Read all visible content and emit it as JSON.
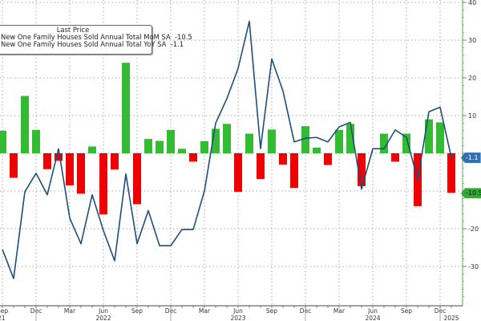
{
  "chart_data": {
    "type": "bar",
    "title": "",
    "legend": {
      "title": "Last Price",
      "entries": [
        {
          "name": "New One Family Houses Sold Annual Total MoM SA",
          "last": "-10.5",
          "type": "bar"
        },
        {
          "name": "New One Family Houses Sold Annual Total YoY SA",
          "last": "-1.1",
          "type": "line"
        }
      ],
      "position": "top-left"
    },
    "xlabel": "",
    "ylabel": "",
    "ylim": [
      -40,
      40
    ],
    "yticks": [
      40,
      30,
      20,
      10,
      0,
      -10,
      -20,
      -30
    ],
    "y_axis_side": "right",
    "grid": true,
    "x_ticks": [
      {
        "label": "Sep",
        "year": "2021"
      },
      {
        "label": "Dec",
        "year": ""
      },
      {
        "label": "Mar",
        "year": ""
      },
      {
        "label": "Jun",
        "year": "2022"
      },
      {
        "label": "Sep",
        "year": ""
      },
      {
        "label": "Dec",
        "year": ""
      },
      {
        "label": "Mar",
        "year": ""
      },
      {
        "label": "Jun",
        "year": "2023"
      },
      {
        "label": "Sep",
        "year": ""
      },
      {
        "label": "Dec",
        "year": ""
      },
      {
        "label": "Mar",
        "year": ""
      },
      {
        "label": "Jun",
        "year": "2024"
      },
      {
        "label": "Sep",
        "year": ""
      },
      {
        "label": "Dec",
        "year": "2025"
      }
    ],
    "categories": [
      "2021-09",
      "2021-10",
      "2021-11",
      "2021-12",
      "2022-01",
      "2022-02",
      "2022-03",
      "2022-04",
      "2022-05",
      "2022-06",
      "2022-07",
      "2022-08",
      "2022-09",
      "2022-10",
      "2022-11",
      "2022-12",
      "2023-01",
      "2023-02",
      "2023-03",
      "2023-04",
      "2023-05",
      "2023-06",
      "2023-07",
      "2023-08",
      "2023-09",
      "2023-10",
      "2023-11",
      "2023-12",
      "2024-01",
      "2024-02",
      "2024-03",
      "2024-04",
      "2024-05",
      "2024-06",
      "2024-07",
      "2024-08",
      "2024-09",
      "2024-10",
      "2024-11",
      "2024-12",
      "2025-01"
    ],
    "series": [
      {
        "name": "New One Family Houses Sold Annual Total MoM SA",
        "type": "bar",
        "color_pos": "#33bb33",
        "color_neg": "#ee0000",
        "values": [
          6,
          -6.5,
          15.2,
          6.2,
          -4.2,
          -2,
          -8.5,
          -10.7,
          1.8,
          -16.2,
          -4.3,
          24,
          -13.5,
          3.8,
          3.3,
          6.2,
          1.2,
          -2.2,
          3.2,
          6.5,
          7.8,
          -10.2,
          5.2,
          -6.8,
          6.3,
          -3,
          -9.2,
          7.2,
          1.5,
          -3.1,
          6.2,
          7.8,
          -8.7,
          0,
          5.2,
          -2.2,
          5.2,
          -14,
          9,
          8.2,
          -10.5
        ]
      },
      {
        "name": "New One Family Houses Sold Annual Total YoY SA",
        "type": "line",
        "color": "#1f4e79",
        "values": [
          -25.5,
          -33.2,
          -10.2,
          -5.3,
          -11,
          1.2,
          -17.2,
          -24,
          -11,
          -20.5,
          -28.5,
          -5.5,
          -24,
          -15.2,
          -24.5,
          -24.5,
          -20.2,
          -20.2,
          -10,
          8,
          14.5,
          22.5,
          35,
          1.2,
          25,
          16.5,
          3,
          4,
          4.2,
          3,
          7,
          8.2,
          -9.5,
          1.2,
          1.2,
          6.2,
          4.2,
          -7,
          11,
          12.2,
          -1.1
        ]
      }
    ],
    "last_value_tags": [
      {
        "value": "-1.1",
        "color": "#2e6fb5"
      },
      {
        "value": "-10.5",
        "color": "#33aa33"
      }
    ]
  }
}
